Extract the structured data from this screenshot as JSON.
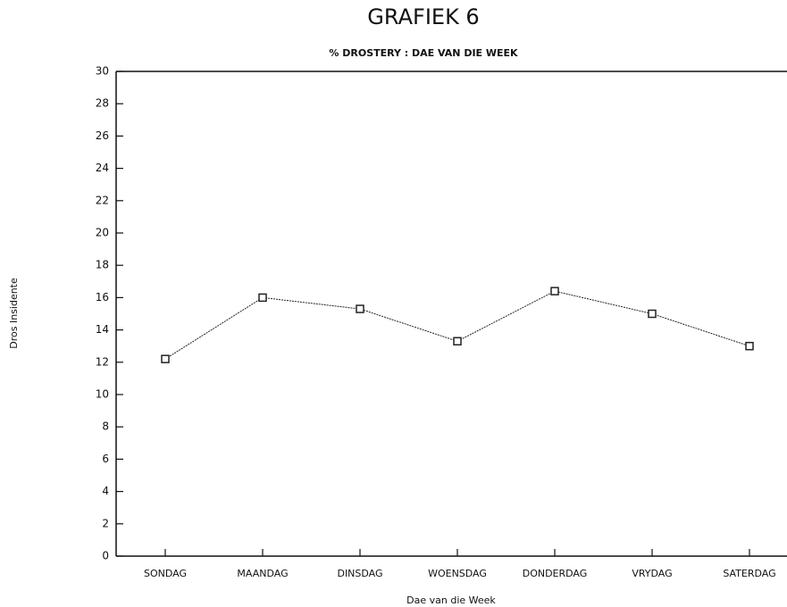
{
  "chart_data": {
    "type": "line",
    "title": "GRAFIEK 6",
    "subtitle": "% DROSTERY : DAE VAN DIE WEEK",
    "x_label": "Dae van die Week",
    "y_label": "Dros Insidente",
    "categories": [
      "SONDAG",
      "MAANDAG",
      "DINSDAG",
      "WOENSDAG",
      "DONDERDAG",
      "VRYDAG",
      "SATERDAG"
    ],
    "values": [
      12.2,
      16.0,
      15.3,
      13.3,
      16.4,
      15.0,
      13.0
    ],
    "color": "#222222",
    "marker": "square",
    "ylim": [
      0,
      30
    ],
    "yticks": [
      0,
      2,
      4,
      6,
      8,
      10,
      12,
      14,
      16,
      18,
      20,
      22,
      24,
      26,
      28,
      30
    ],
    "grid": false
  }
}
